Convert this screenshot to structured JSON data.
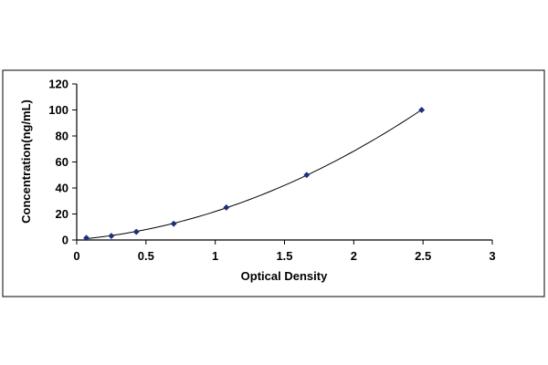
{
  "chart_data": {
    "type": "scatter",
    "title": "",
    "xlabel": "Optical Density",
    "ylabel": "Concentration(ng/mL)",
    "xlim": [
      0,
      3
    ],
    "ylim": [
      0,
      120
    ],
    "xticks": [
      0,
      0.5,
      1,
      1.5,
      2,
      2.5,
      3
    ],
    "xtick_labels": [
      "0",
      "0.5",
      "1",
      "1.5",
      "2",
      "2.5",
      "3"
    ],
    "yticks": [
      0,
      20,
      40,
      60,
      80,
      100,
      120
    ],
    "ytick_labels": [
      "0",
      "20",
      "40",
      "60",
      "80",
      "100",
      "120"
    ],
    "grid": false,
    "legend": "none",
    "colors": {
      "points": "#1f2f7a",
      "curve": "#000000",
      "axis": "#000000",
      "frame": "#000000"
    },
    "series": [
      {
        "x": [
          0.07,
          0.25,
          0.43,
          0.7,
          1.08,
          1.66,
          2.49
        ],
        "y": [
          1.56,
          3.12,
          6.25,
          12.5,
          25,
          50,
          100
        ],
        "marker": "diamond",
        "trendline": "polynomial"
      }
    ]
  }
}
